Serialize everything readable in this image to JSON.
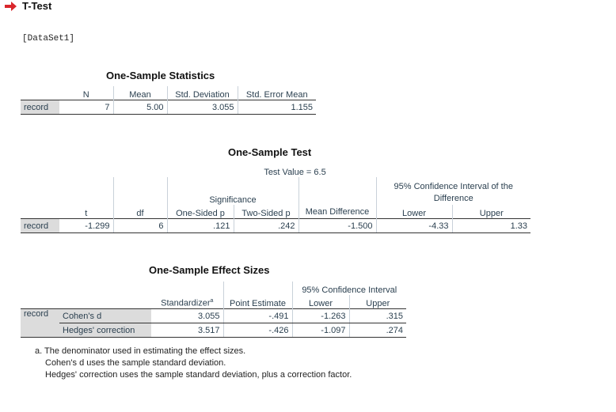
{
  "heading": "T-Test",
  "dataset": "[DataSet1]",
  "stats": {
    "title": "One-Sample Statistics",
    "headers": [
      "N",
      "Mean",
      "Std. Deviation",
      "Std. Error Mean"
    ],
    "row": {
      "label": "record",
      "n": "7",
      "mean": "5.00",
      "sd": "3.055",
      "se": "1.155"
    }
  },
  "test": {
    "title": "One-Sample Test",
    "test_value": "Test Value = 6.5",
    "significance": "Significance",
    "ci_header": "95% Confidence Interval of the Difference",
    "headers": {
      "t": "t",
      "df": "df",
      "one_sided": "One-Sided p",
      "two_sided": "Two-Sided p",
      "mean_diff": "Mean Difference",
      "lower": "Lower",
      "upper": "Upper"
    },
    "row": {
      "label": "record",
      "t": "-1.299",
      "df": "6",
      "one_sided": ".121",
      "two_sided": ".242",
      "mean_diff": "-1.500",
      "lower": "-4.33",
      "upper": "1.33"
    }
  },
  "effect": {
    "title": "One-Sample Effect Sizes",
    "ci_header": "95% Confidence Interval",
    "headers": {
      "standardizer": "Standardizer",
      "standardizer_sup": "a",
      "point": "Point Estimate",
      "lower": "Lower",
      "upper": "Upper"
    },
    "group_label": "record",
    "rows": [
      {
        "label": "Cohen's d",
        "standardizer": "3.055",
        "point": "-.491",
        "lower": "-1.263",
        "upper": ".315"
      },
      {
        "label": "Hedges' correction",
        "standardizer": "3.517",
        "point": "-.426",
        "lower": "-1.097",
        "upper": ".274"
      }
    ],
    "footnotes": [
      "a. The denominator used in estimating the effect sizes.",
      "Cohen's d uses the sample standard deviation.",
      "Hedges' correction uses the sample standard deviation, plus a correction factor."
    ]
  },
  "colors": {
    "arrow": "#d9262c",
    "row_label_bg": "#dcdcdc",
    "text": "#2a3f4f"
  }
}
